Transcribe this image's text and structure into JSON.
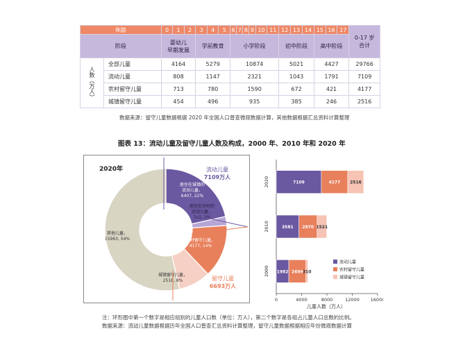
{
  "table": {
    "age_label": "年龄",
    "ages": [
      "0",
      "1",
      "2",
      "3",
      "4",
      "5",
      "6",
      "7",
      "8",
      "9",
      "10",
      "11",
      "12",
      "13",
      "14",
      "15",
      "16",
      "17"
    ],
    "total_header_line1": "0-17 岁",
    "total_header_line2": "合计",
    "stage_label": "阶段",
    "stages": {
      "early_line1": "婴幼儿",
      "early_line2": "早期发展",
      "preschool": "学前教育",
      "primary": "小学阶段",
      "junior": "初中阶段",
      "senior": "高中阶段"
    },
    "unit_label": "人数（万人）",
    "rows": [
      {
        "name": "全部儿童",
        "values": [
          "4164",
          "5279",
          "10874",
          "5021",
          "4427",
          "29766"
        ]
      },
      {
        "name": "流动儿童",
        "values": [
          "808",
          "1147",
          "2321",
          "1043",
          "1791",
          "7109"
        ]
      },
      {
        "name": "农村留守儿童",
        "values": [
          "713",
          "780",
          "1590",
          "672",
          "421",
          "4177"
        ]
      },
      {
        "name": "城镇留守儿童",
        "values": [
          "454",
          "496",
          "935",
          "385",
          "246",
          "2516"
        ]
      }
    ]
  },
  "table_source": "数据来源：留守儿童数据根据 2020 年全国人口普查微观数据计算，其他数据根据汇总资料计算整理",
  "figure_title": "图表 13：流动儿童及留守儿童人数及构成，2000 年、2010 年和 2020 年",
  "donut": {
    "year_label": "2020年",
    "segments": [
      {
        "label_line1": "居住在城镇的",
        "label_line2": "流动儿童，",
        "label_line3": "6407, 22%",
        "value": 6407,
        "color": "#6a58a0"
      },
      {
        "label_line1": "居住在农村的",
        "label_line2": "流动儿童，",
        "label_line3": "703, 2%",
        "value": 703,
        "color": "#b6a6d6"
      },
      {
        "label_line1": "农村留守儿童，",
        "label_line2": "4177, 14%",
        "label_line3": "",
        "value": 4177,
        "color": "#e8805c"
      },
      {
        "label_line1": "城镇留守儿童，",
        "label_line2": "2516, 8%",
        "label_line3": "",
        "value": 2516,
        "color": "#f6d0c4"
      },
      {
        "label_line1": "其他儿童，",
        "label_line2": "15963, 54%",
        "label_line3": "",
        "value": 15963,
        "color": "#d9d5c3"
      }
    ],
    "callout_migrant_line1": "流动儿童",
    "callout_migrant_line2": "7109万人",
    "callout_left_behind_line1": "留守儿童",
    "callout_left_behind_line2": "6693万人",
    "colors": {
      "migrant": "#6a58a0",
      "left_behind": "#e8805c"
    }
  },
  "chart_data": {
    "type": "bar",
    "orientation": "horizontal-stacked",
    "categories": [
      "2020",
      "2010",
      "2000"
    ],
    "series": [
      {
        "name": "流动儿童",
        "values": [
          7109,
          3581,
          1982
        ],
        "color": "#6a58a0"
      },
      {
        "name": "农村留守儿童",
        "values": [
          4177,
          2870,
          2699
        ],
        "color": "#e8805c"
      },
      {
        "name": "城镇留守儿童",
        "values": [
          2516,
          1521,
          310
        ],
        "color": "#f6c3b5"
      }
    ],
    "data_labels": [
      [
        "7109",
        "4177",
        "2516"
      ],
      [
        "3581",
        "2870",
        "1521"
      ],
      [
        "1982",
        "2699",
        "310"
      ]
    ],
    "xlabel": "儿童人数（万人）",
    "xlim": [
      0,
      16000
    ],
    "xticks": [
      "0",
      "4000",
      "8000",
      "12000",
      "16000"
    ],
    "xtick_values": [
      0,
      4000,
      8000,
      12000,
      16000
    ],
    "legend_position": "bottom-right",
    "grid": false
  },
  "footnote_line1": "注：环形图中第一个数字是相应组别的儿童人口数（单位：万人），第二个数字是各组占儿童人口总数的比例。",
  "footnote_line2": "数据来源：流动儿童数据根据历年全国人口普查汇总资料计算整理，留守儿童数据根据相应年份微观数据计算"
}
